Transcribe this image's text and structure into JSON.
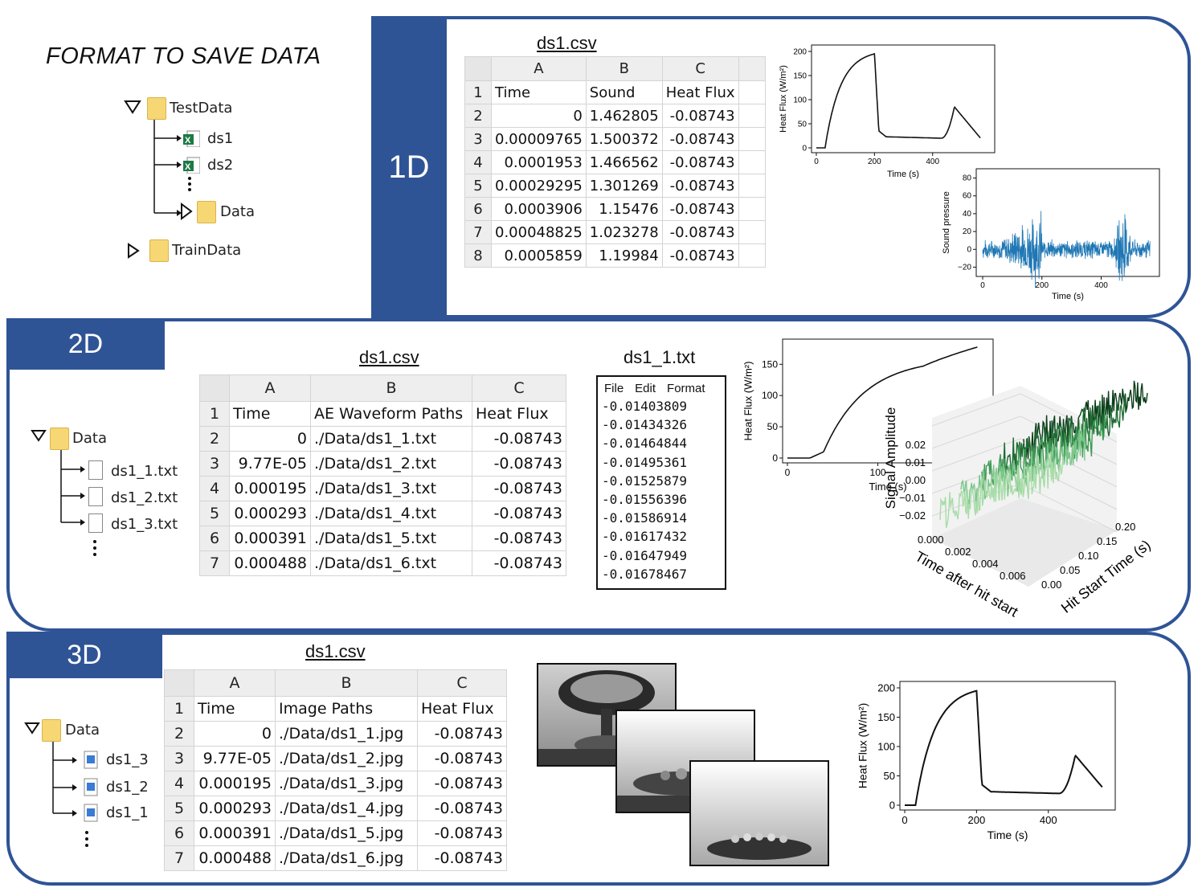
{
  "title": "FORMAT TO SAVE DATA",
  "tree": {
    "testdata": "TestData",
    "ds1": "ds1",
    "ds2": "ds2",
    "data": "Data",
    "traindata": "TrainData"
  },
  "panel1d": {
    "tab": "1D",
    "file": "ds1.csv",
    "cols": [
      "A",
      "B",
      "C"
    ],
    "rownums": [
      "1",
      "2",
      "3",
      "4",
      "5",
      "6",
      "7",
      "8"
    ],
    "header": [
      "Time",
      "Sound",
      "Heat Flux"
    ],
    "rows": [
      [
        "0",
        "1.462805",
        "-0.08743"
      ],
      [
        "0.00009765",
        "1.500372",
        "-0.08743"
      ],
      [
        "0.0001953",
        "1.466562",
        "-0.08743"
      ],
      [
        "0.00029295",
        "1.301269",
        "-0.08743"
      ],
      [
        "0.0003906",
        "1.15476",
        "-0.08743"
      ],
      [
        "0.00048825",
        "1.023278",
        "-0.08743"
      ],
      [
        "0.0005859",
        "1.19984",
        "-0.08743"
      ]
    ],
    "heat_chart": {
      "ylabel": "Heat Flux (W/m²)",
      "xlabel": "Time (s)",
      "yticks": [
        "0",
        "50",
        "100",
        "150",
        "200"
      ],
      "xticks": [
        "0",
        "200",
        "400"
      ]
    },
    "sound_chart": {
      "ylabel": "Sound pressure",
      "xlabel": "Time (s)",
      "yticks": [
        "−20",
        "0",
        "20",
        "40",
        "60",
        "80"
      ],
      "xticks": [
        "0",
        "200",
        "400"
      ],
      "color": "#1f77b4"
    }
  },
  "panel2d": {
    "tab": "2D",
    "tree": {
      "data": "Data",
      "files": [
        "ds1_1.txt",
        "ds1_2.txt",
        "ds1_3.txt"
      ]
    },
    "file": "ds1.csv",
    "cols": [
      "A",
      "B",
      "C"
    ],
    "rownums": [
      "1",
      "2",
      "3",
      "4",
      "5",
      "6",
      "7"
    ],
    "header": [
      "Time",
      "AE Waveform Paths",
      "Heat Flux"
    ],
    "rows": [
      [
        "0",
        "./Data/ds1_1.txt",
        "-0.08743"
      ],
      [
        "9.77E-05",
        "./Data/ds1_2.txt",
        "-0.08743"
      ],
      [
        "0.000195",
        "./Data/ds1_3.txt",
        "-0.08743"
      ],
      [
        "0.000293",
        "./Data/ds1_4.txt",
        "-0.08743"
      ],
      [
        "0.000391",
        "./Data/ds1_5.txt",
        "-0.08743"
      ],
      [
        "0.000488",
        "./Data/ds1_6.txt",
        "-0.08743"
      ]
    ],
    "txt_file": "ds1_1.txt",
    "txt_menu": [
      "File",
      "Edit",
      "Format"
    ],
    "txt_lines": [
      "-0.01403809",
      "-0.01434326",
      "-0.01464844",
      "-0.01495361",
      "-0.01525879",
      "-0.01556396",
      "-0.01586914",
      "-0.01617432",
      "-0.01647949",
      "-0.01678467"
    ],
    "heat_chart": {
      "ylabel": "Heat Flux (W/m²)",
      "xlabel": "Time (s)",
      "yticks": [
        "0",
        "50",
        "100",
        "150"
      ],
      "xticks": [
        "0",
        "100"
      ]
    },
    "chart3d": {
      "zlabel": "Signal Amplitude",
      "xlabel": "Time after hit start",
      "ylabel": "Hit Start Time (s)",
      "zticks": [
        "0.02",
        "0.01",
        "0.00",
        "−0.01",
        "−0.02"
      ],
      "xticks": [
        "0.000",
        "0.002",
        "0.004",
        "0.006"
      ],
      "yticks": [
        "0.00",
        "0.05",
        "0.10",
        "0.15",
        "0.20"
      ],
      "colors": [
        "#0b3d1a",
        "#1f6b33",
        "#3f9a55",
        "#7cc68a",
        "#a8dca8"
      ]
    }
  },
  "panel3d": {
    "tab": "3D",
    "tree": {
      "data": "Data",
      "files": [
        "ds1_3",
        "ds1_2",
        "ds1_1"
      ]
    },
    "file": "ds1.csv",
    "cols": [
      "A",
      "B",
      "C"
    ],
    "rownums": [
      "1",
      "2",
      "3",
      "4",
      "5",
      "6",
      "7"
    ],
    "header": [
      "Time",
      "Image Paths",
      "Heat Flux"
    ],
    "rows": [
      [
        "0",
        "./Data/ds1_1.jpg",
        "-0.08743"
      ],
      [
        "9.77E-05",
        "./Data/ds1_2.jpg",
        "-0.08743"
      ],
      [
        "0.000195",
        "./Data/ds1_3.jpg",
        "-0.08743"
      ],
      [
        "0.000293",
        "./Data/ds1_4.jpg",
        "-0.08743"
      ],
      [
        "0.000391",
        "./Data/ds1_5.jpg",
        "-0.08743"
      ],
      [
        "0.000488",
        "./Data/ds1_6.jpg",
        "-0.08743"
      ]
    ],
    "heat_chart": {
      "ylabel": "Heat Flux (W/m²)",
      "xlabel": "Time (s)",
      "yticks": [
        "0",
        "50",
        "100",
        "150",
        "200"
      ],
      "xticks": [
        "0",
        "200",
        "400"
      ]
    }
  }
}
